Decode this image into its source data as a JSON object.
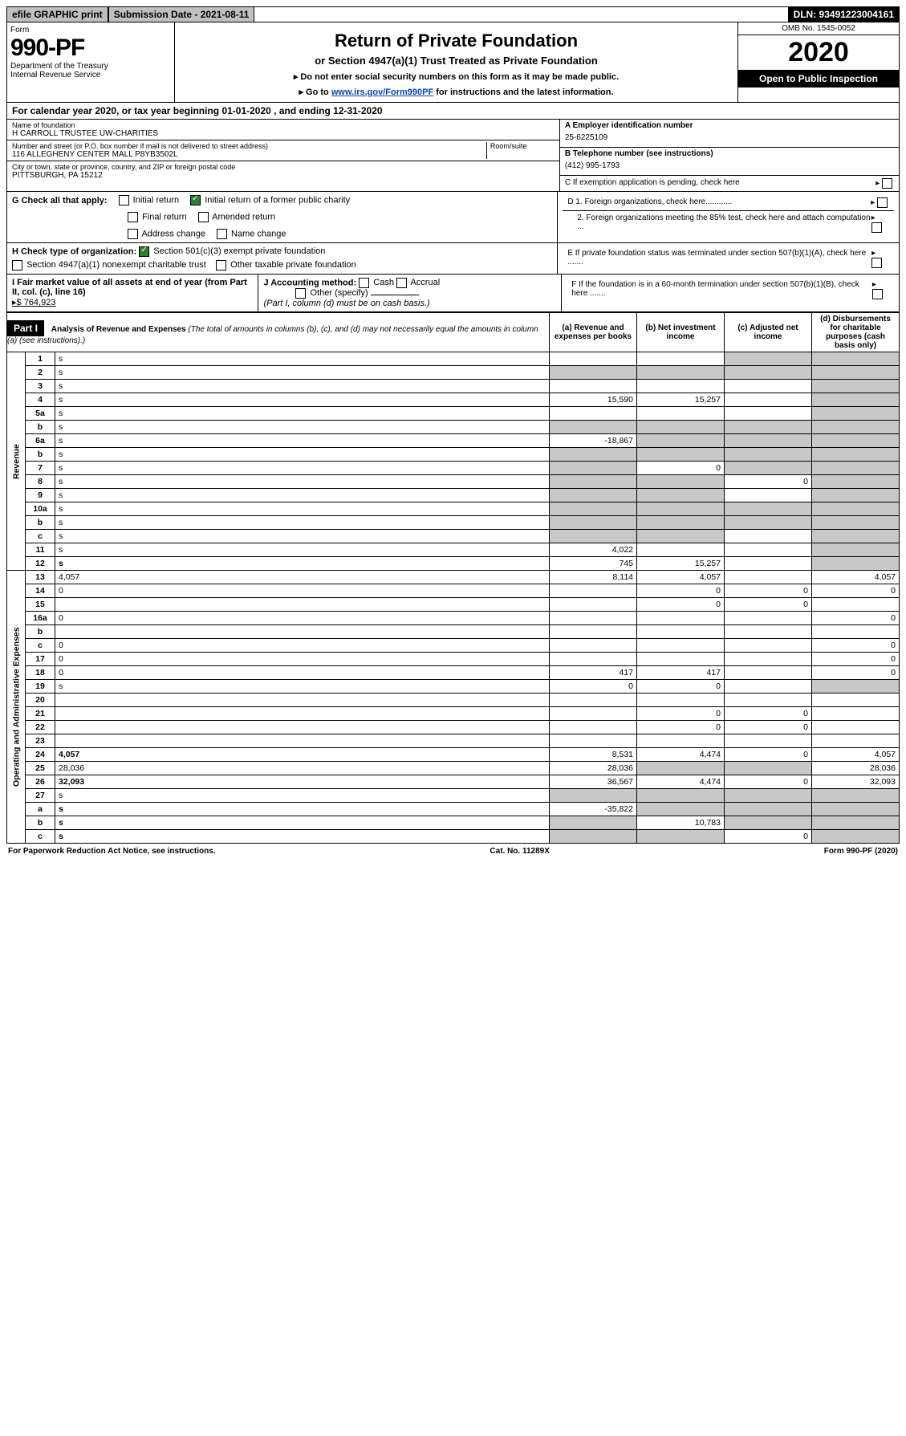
{
  "topbar": {
    "efile": "efile GRAPHIC print",
    "subdate_label": "Submission Date - 2021-08-11",
    "dln": "DLN: 93491223004161"
  },
  "header": {
    "form_label": "Form",
    "form_no": "990-PF",
    "dept": "Department of the Treasury",
    "irs": "Internal Revenue Service",
    "title": "Return of Private Foundation",
    "subtitle": "or Section 4947(a)(1) Trust Treated as Private Foundation",
    "inst1": "▸ Do not enter social security numbers on this form as it may be made public.",
    "inst2_pre": "▸ Go to ",
    "inst2_link": "www.irs.gov/Form990PF",
    "inst2_post": " for instructions and the latest information.",
    "omb": "OMB No. 1545-0052",
    "year": "2020",
    "open": "Open to Public Inspection"
  },
  "cal": "For calendar year 2020, or tax year beginning 01-01-2020            , and ending 12-31-2020",
  "info": {
    "name_lbl": "Name of foundation",
    "name": "H CARROLL TRUSTEE UW-CHARITIES",
    "addr_lbl": "Number and street (or P.O. box number if mail is not delivered to street address)",
    "addr": "116 ALLEGHENY CENTER MALL P8YB3502L",
    "room_lbl": "Room/suite",
    "city_lbl": "City or town, state or province, country, and ZIP or foreign postal code",
    "city": "PITTSBURGH, PA  15212",
    "ein_lbl": "A Employer identification number",
    "ein": "25-6225109",
    "tel_lbl": "B Telephone number (see instructions)",
    "tel": "(412) 995-1793",
    "c_lbl": "C If exemption application is pending, check here",
    "d1": "D 1. Foreign organizations, check here............",
    "d2": "2. Foreign organizations meeting the 85% test, check here and attach computation ...",
    "e": "E  If private foundation status was terminated under section 507(b)(1)(A), check here .......",
    "f": "F  If the foundation is in a 60-month termination under section 507(b)(1)(B), check here ......."
  },
  "checks": {
    "g_lbl": "G Check all that apply:",
    "initial": "Initial return",
    "initial_former": "Initial return of a former public charity",
    "final": "Final return",
    "amended": "Amended return",
    "addr_change": "Address change",
    "name_change": "Name change",
    "h_lbl": "H Check type of organization:",
    "h1": "Section 501(c)(3) exempt private foundation",
    "h2": "Section 4947(a)(1) nonexempt charitable trust",
    "h3": "Other taxable private foundation",
    "i_lbl": "I Fair market value of all assets at end of year (from Part II, col. (c), line 16)",
    "i_val": "▸$  764,923",
    "j_lbl": "J Accounting method:",
    "j_cash": "Cash",
    "j_accrual": "Accrual",
    "j_other": "Other (specify)",
    "j_note": "(Part I, column (d) must be on cash basis.)"
  },
  "part1": {
    "label": "Part I",
    "title": "Analysis of Revenue and Expenses",
    "title_note": " (The total of amounts in columns (b), (c), and (d) may not necessarily equal the amounts in column (a) (see instructions).)",
    "col_a": "(a)  Revenue and expenses per books",
    "col_b": "(b)  Net investment income",
    "col_c": "(c)  Adjusted net income",
    "col_d": "(d)  Disbursements for charitable purposes (cash basis only)"
  },
  "sections": {
    "revenue": "Revenue",
    "expenses": "Operating and Administrative Expenses"
  },
  "rows": [
    {
      "n": "1",
      "d": "s",
      "a": "",
      "b": "",
      "c": "s"
    },
    {
      "n": "2",
      "d": "s",
      "a": "s",
      "b": "s",
      "c": "s"
    },
    {
      "n": "3",
      "d": "s",
      "a": "",
      "b": "",
      "c": ""
    },
    {
      "n": "4",
      "d": "s",
      "a": "15,590",
      "b": "15,257",
      "c": ""
    },
    {
      "n": "5a",
      "d": "s",
      "a": "",
      "b": "",
      "c": ""
    },
    {
      "n": "b",
      "d": "s",
      "a": "s",
      "b": "s",
      "c": "s"
    },
    {
      "n": "6a",
      "d": "s",
      "a": "-18,867",
      "b": "s",
      "c": "s"
    },
    {
      "n": "b",
      "d": "s",
      "a": "s",
      "b": "s",
      "c": "s"
    },
    {
      "n": "7",
      "d": "s",
      "a": "s",
      "b": "0",
      "c": "s"
    },
    {
      "n": "8",
      "d": "s",
      "a": "s",
      "b": "s",
      "c": "0"
    },
    {
      "n": "9",
      "d": "s",
      "a": "s",
      "b": "s",
      "c": ""
    },
    {
      "n": "10a",
      "d": "s",
      "a": "s",
      "b": "s",
      "c": "s"
    },
    {
      "n": "b",
      "d": "s",
      "a": "s",
      "b": "s",
      "c": "s"
    },
    {
      "n": "c",
      "d": "s",
      "a": "s",
      "b": "s",
      "c": ""
    },
    {
      "n": "11",
      "d": "s",
      "a": "4,022",
      "b": "",
      "c": ""
    },
    {
      "n": "12",
      "d": "s",
      "a": "745",
      "b": "15,257",
      "c": "",
      "bold": true
    }
  ],
  "exp_rows": [
    {
      "n": "13",
      "d": "4,057",
      "a": "8,114",
      "b": "4,057",
      "c": ""
    },
    {
      "n": "14",
      "d": "0",
      "a": "",
      "b": "0",
      "c": "0"
    },
    {
      "n": "15",
      "d": "",
      "a": "",
      "b": "0",
      "c": "0"
    },
    {
      "n": "16a",
      "d": "0",
      "a": "",
      "b": "",
      "c": ""
    },
    {
      "n": "b",
      "d": "",
      "a": "",
      "b": "",
      "c": ""
    },
    {
      "n": "c",
      "d": "0",
      "a": "",
      "b": "",
      "c": ""
    },
    {
      "n": "17",
      "d": "0",
      "a": "",
      "b": "",
      "c": ""
    },
    {
      "n": "18",
      "d": "0",
      "a": "417",
      "b": "417",
      "c": ""
    },
    {
      "n": "19",
      "d": "s",
      "a": "0",
      "b": "0",
      "c": ""
    },
    {
      "n": "20",
      "d": "",
      "a": "",
      "b": "",
      "c": ""
    },
    {
      "n": "21",
      "d": "",
      "a": "",
      "b": "0",
      "c": "0"
    },
    {
      "n": "22",
      "d": "",
      "a": "",
      "b": "0",
      "c": "0"
    },
    {
      "n": "23",
      "d": "",
      "a": "",
      "b": "",
      "c": ""
    },
    {
      "n": "24",
      "d": "4,057",
      "a": "8,531",
      "b": "4,474",
      "c": "0",
      "bold": true
    },
    {
      "n": "25",
      "d": "28,036",
      "a": "28,036",
      "b": "s",
      "c": "s"
    },
    {
      "n": "26",
      "d": "32,093",
      "a": "36,567",
      "b": "4,474",
      "c": "0",
      "bold": true
    },
    {
      "n": "27",
      "d": "s",
      "a": "s",
      "b": "s",
      "c": "s"
    },
    {
      "n": "a",
      "d": "s",
      "a": "-35,822",
      "b": "s",
      "c": "s",
      "bold": true
    },
    {
      "n": "b",
      "d": "s",
      "a": "s",
      "b": "10,783",
      "c": "s",
      "bold": true
    },
    {
      "n": "c",
      "d": "s",
      "a": "s",
      "b": "s",
      "c": "0",
      "bold": true
    }
  ],
  "footer": {
    "left": "For Paperwork Reduction Act Notice, see instructions.",
    "mid": "Cat. No. 11289X",
    "right": "Form 990-PF (2020)"
  }
}
